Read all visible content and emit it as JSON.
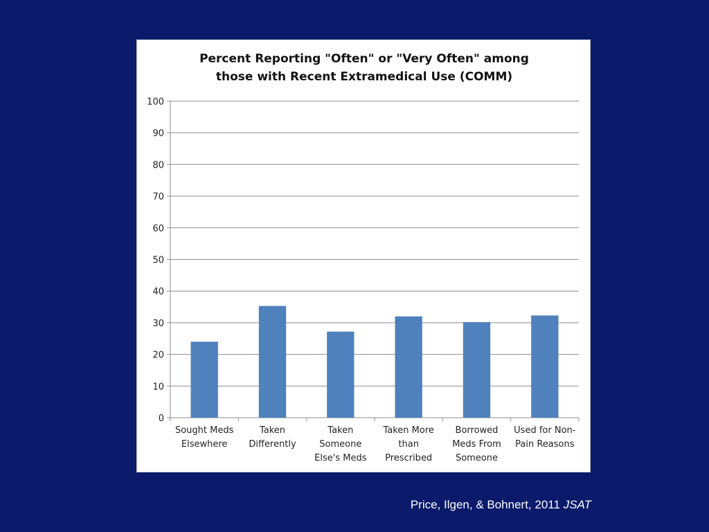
{
  "chart_data": {
    "type": "bar",
    "title_lines": [
      "Percent Reporting \"Often\" or \"Very Often\" among",
      "those with Recent Extramedical Use (COMM)"
    ],
    "categories": [
      [
        "Sought Meds",
        "Elsewhere"
      ],
      [
        "Taken",
        "Differently"
      ],
      [
        "Taken",
        "Someone",
        "Else's Meds"
      ],
      [
        "Taken More",
        "than",
        "Prescribed"
      ],
      [
        "Borrowed",
        "Meds From",
        "Someone"
      ],
      [
        "Used for Non-",
        "Pain Reasons"
      ]
    ],
    "values": [
      24,
      35.3,
      27.2,
      32,
      30.2,
      32.3
    ],
    "ylim": [
      0,
      100
    ],
    "yticks": [
      0,
      10,
      20,
      30,
      40,
      50,
      60,
      70,
      80,
      90,
      100
    ],
    "grid": true,
    "bar_color": "#4f81bd"
  },
  "citation": {
    "authors": "Price, Ilgen, & Bohnert, 2011",
    "journal": "JSAT"
  }
}
